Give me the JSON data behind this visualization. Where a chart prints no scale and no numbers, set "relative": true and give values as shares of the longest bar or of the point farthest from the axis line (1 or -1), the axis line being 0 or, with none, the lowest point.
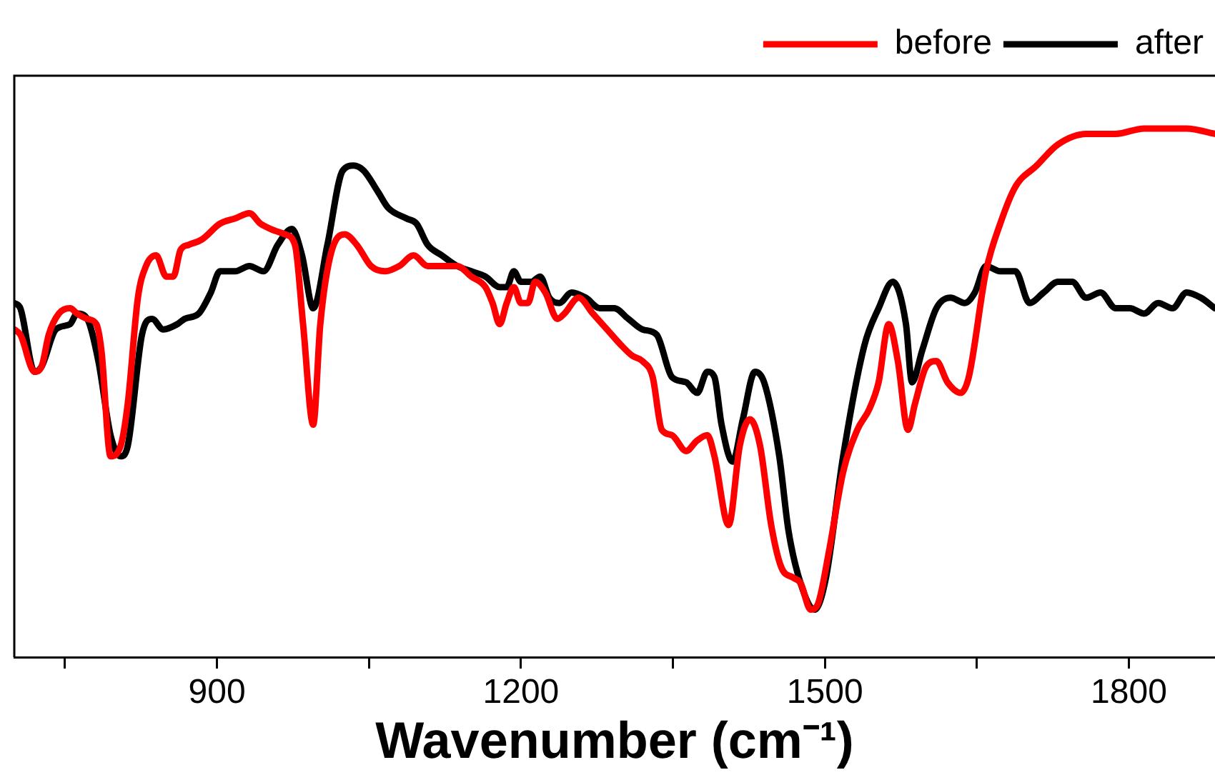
{
  "chart_data": {
    "type": "line",
    "xlabel": "Wavenumber (cm⁻¹)",
    "relative": true,
    "xlim": [
      700,
      1885
    ],
    "xticks": [
      {
        "value": 750,
        "label": null
      },
      900,
      {
        "value": 1050,
        "label": null
      },
      1200,
      {
        "value": 1350,
        "label": null
      },
      1500,
      {
        "value": 1650,
        "label": null
      },
      1800
    ],
    "tick_labels": "x",
    "grid": false,
    "legend": "top right",
    "marker": "none",
    "line_style": "solid",
    "series": [
      {
        "name": "before",
        "color": "#ff0000",
        "x": [
          700,
          706,
          720,
          727,
          734,
          744,
          755,
          762,
          772,
          781,
          786,
          795,
          805,
          812,
          822,
          830,
          840,
          850,
          857,
          864,
          872,
          885,
          903,
          918,
          932,
          943,
          953,
          967,
          977,
          985,
          995,
          1002,
          1012,
          1026,
          1038,
          1052,
          1066,
          1080,
          1094,
          1108,
          1122,
          1137,
          1151,
          1165,
          1172,
          1179,
          1186,
          1193,
          1200,
          1207,
          1214,
          1224,
          1236,
          1243,
          1257,
          1271,
          1285,
          1299,
          1310,
          1320,
          1330,
          1339,
          1349,
          1363,
          1374,
          1384,
          1391,
          1405,
          1416,
          1426,
          1436,
          1447,
          1457,
          1469,
          1476,
          1486,
          1493,
          1504,
          1518,
          1532,
          1544,
          1553,
          1563,
          1572,
          1582,
          1589,
          1600,
          1610,
          1621,
          1634,
          1642,
          1659,
          1673,
          1688,
          1709,
          1730,
          1758,
          1787,
          1815,
          1857,
          1885
        ],
        "values": [
          0.62,
          0.61,
          0.54,
          0.55,
          0.61,
          0.65,
          0.66,
          0.65,
          0.64,
          0.63,
          0.58,
          0.38,
          0.4,
          0.48,
          0.68,
          0.74,
          0.76,
          0.72,
          0.72,
          0.77,
          0.78,
          0.79,
          0.82,
          0.83,
          0.84,
          0.82,
          0.81,
          0.8,
          0.78,
          0.63,
          0.44,
          0.63,
          0.76,
          0.8,
          0.78,
          0.74,
          0.73,
          0.74,
          0.76,
          0.74,
          0.74,
          0.74,
          0.72,
          0.7,
          0.67,
          0.63,
          0.67,
          0.7,
          0.67,
          0.67,
          0.71,
          0.69,
          0.64,
          0.65,
          0.68,
          0.65,
          0.62,
          0.59,
          0.57,
          0.56,
          0.53,
          0.43,
          0.42,
          0.39,
          0.41,
          0.42,
          0.38,
          0.25,
          0.4,
          0.45,
          0.4,
          0.25,
          0.17,
          0.15,
          0.14,
          0.09,
          0.1,
          0.2,
          0.35,
          0.43,
          0.47,
          0.52,
          0.63,
          0.56,
          0.43,
          0.48,
          0.55,
          0.56,
          0.52,
          0.5,
          0.53,
          0.73,
          0.82,
          0.89,
          0.93,
          0.97,
          0.99,
          0.99,
          1.0,
          1.0,
          0.99
        ]
      },
      {
        "name": "after",
        "color": "#000000",
        "x": [
          700,
          706,
          720,
          727,
          741,
          755,
          762,
          772,
          783,
          795,
          805,
          812,
          826,
          836,
          847,
          861,
          868,
          882,
          894,
          903,
          918,
          932,
          946,
          960,
          974,
          984,
          995,
          1009,
          1024,
          1035,
          1045,
          1059,
          1069,
          1087,
          1097,
          1108,
          1122,
          1137,
          1151,
          1165,
          1179,
          1186,
          1193,
          1200,
          1210,
          1219,
          1228,
          1238,
          1250,
          1264,
          1278,
          1292,
          1306,
          1320,
          1334,
          1349,
          1363,
          1374,
          1384,
          1391,
          1398,
          1409,
          1419,
          1431,
          1440,
          1455,
          1464,
          1476,
          1490,
          1501,
          1518,
          1539,
          1553,
          1567,
          1580,
          1586,
          1596,
          1610,
          1624,
          1638,
          1648,
          1659,
          1673,
          1688,
          1702,
          1716,
          1730,
          1744,
          1758,
          1772,
          1787,
          1801,
          1815,
          1829,
          1843,
          1857,
          1871,
          1885
        ],
        "values": [
          0.67,
          0.66,
          0.54,
          0.55,
          0.62,
          0.63,
          0.65,
          0.64,
          0.56,
          0.42,
          0.38,
          0.4,
          0.61,
          0.64,
          0.62,
          0.63,
          0.64,
          0.65,
          0.69,
          0.73,
          0.73,
          0.74,
          0.73,
          0.78,
          0.81,
          0.76,
          0.66,
          0.78,
          0.92,
          0.93,
          0.92,
          0.88,
          0.85,
          0.83,
          0.82,
          0.78,
          0.76,
          0.74,
          0.73,
          0.72,
          0.7,
          0.7,
          0.73,
          0.71,
          0.71,
          0.72,
          0.68,
          0.67,
          0.69,
          0.68,
          0.66,
          0.66,
          0.64,
          0.62,
          0.61,
          0.53,
          0.52,
          0.5,
          0.54,
          0.53,
          0.44,
          0.37,
          0.45,
          0.54,
          0.52,
          0.38,
          0.24,
          0.14,
          0.09,
          0.15,
          0.38,
          0.59,
          0.66,
          0.71,
          0.63,
          0.52,
          0.58,
          0.66,
          0.68,
          0.67,
          0.69,
          0.74,
          0.73,
          0.73,
          0.67,
          0.69,
          0.71,
          0.71,
          0.68,
          0.69,
          0.66,
          0.66,
          0.65,
          0.67,
          0.66,
          0.69,
          0.68,
          0.66
        ]
      }
    ]
  }
}
